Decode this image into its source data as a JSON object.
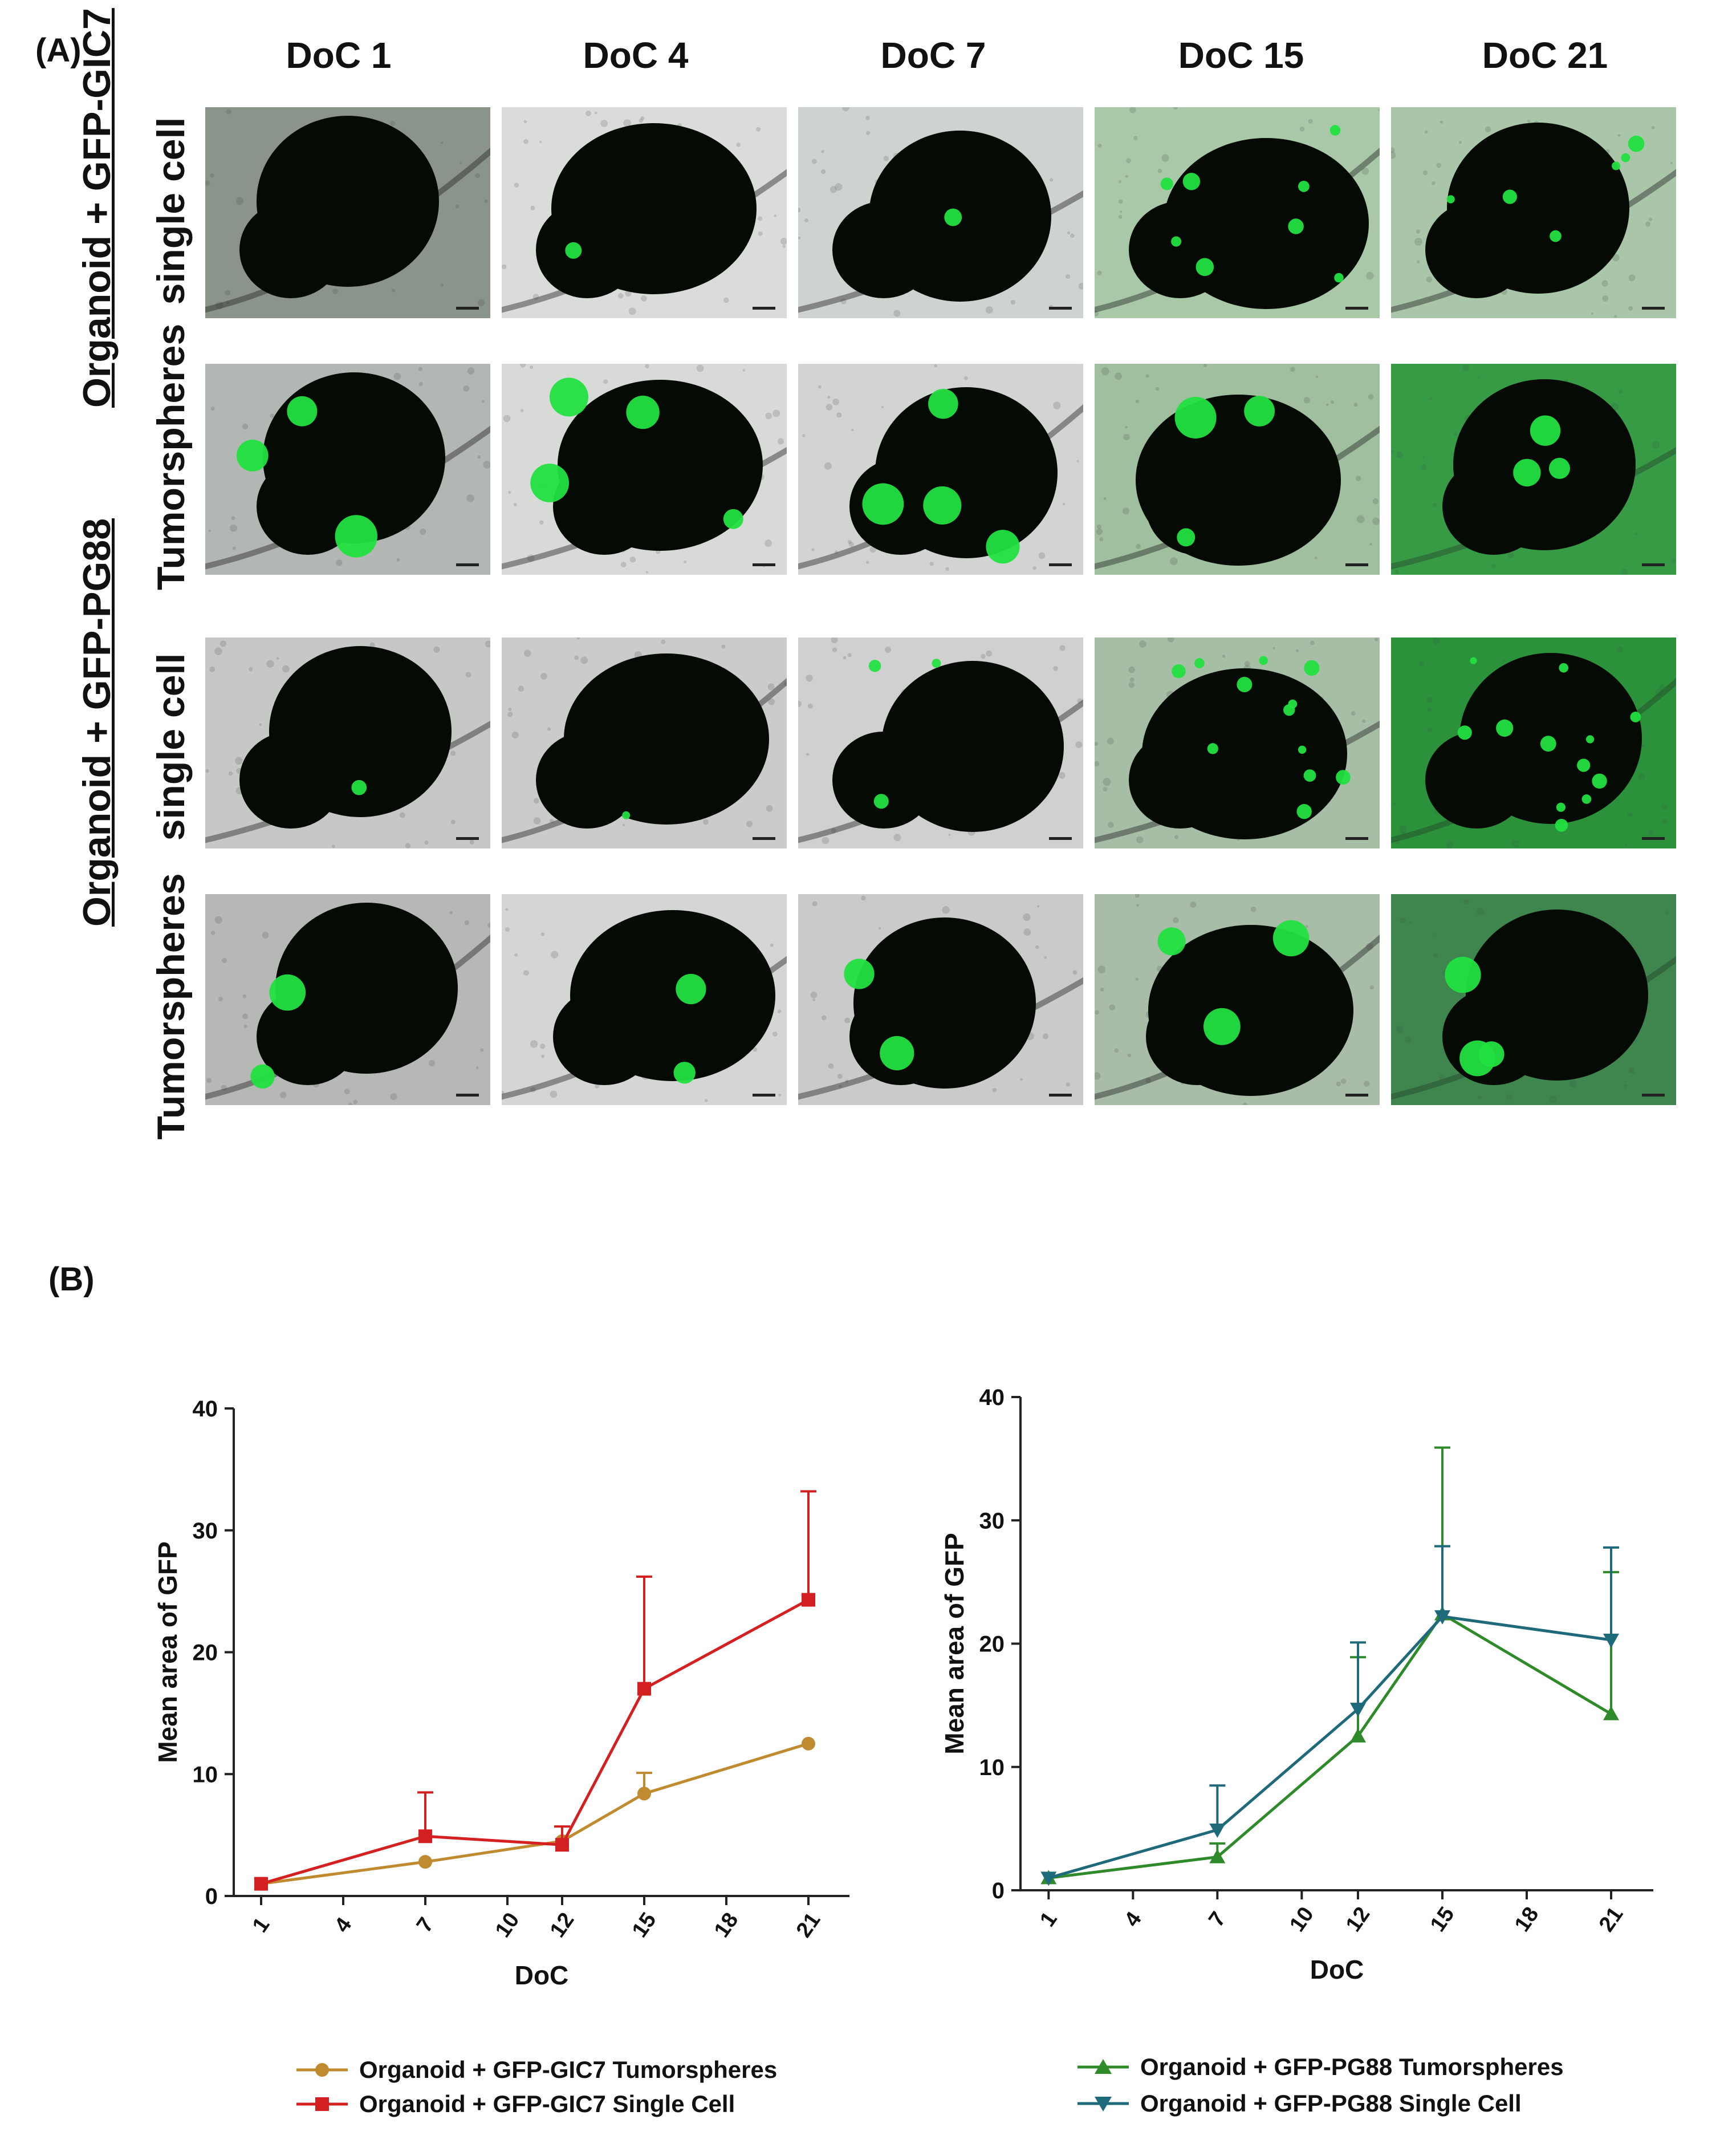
{
  "panel_a": {
    "letter": "(A)",
    "columns": [
      "DoC 1",
      "DoC 4",
      "DoC 7",
      "DoC 15",
      "DoC 21"
    ],
    "groups": [
      {
        "label": "Organoid + GFP-GIC7",
        "rows": [
          "single cell",
          "Tumorspheres"
        ]
      },
      {
        "label": "Organoid + GFP-PG88",
        "rows": [
          "single cell",
          "Tumorspheres"
        ]
      }
    ],
    "colors": {
      "gfp": "#22e040",
      "organoid": "#050a05"
    }
  },
  "panel_b": {
    "letter": "(B)",
    "chart_data": [
      {
        "type": "line",
        "xlabel": "DoC",
        "ylabel": "Mean area of GFP",
        "xticks": [
          1,
          4,
          7,
          10,
          12,
          15,
          18,
          21
        ],
        "yticks": [
          0,
          10,
          20,
          30,
          40
        ],
        "xlim": [
          0,
          22.5
        ],
        "ylim": [
          0,
          40
        ],
        "series": [
          {
            "name": "Organoid + GFP-GIC7 Tumorspheres",
            "color": "#c08a2e",
            "marker": "circle",
            "x": [
              1,
              7,
              12,
              15,
              21
            ],
            "y": [
              1.0,
              2.8,
              4.5,
              8.4,
              12.5
            ],
            "err": [
              0,
              0,
              0,
              1.7,
              0
            ]
          },
          {
            "name": "Organoid + GFP-GIC7 Single Cell",
            "color": "#d42020",
            "marker": "square",
            "x": [
              1,
              7,
              12,
              15,
              21
            ],
            "y": [
              1.0,
              4.9,
              4.2,
              17.0,
              24.3
            ],
            "err": [
              0,
              3.6,
              1.5,
              9.2,
              8.9
            ]
          }
        ]
      },
      {
        "type": "line",
        "xlabel": "DoC",
        "ylabel": "Mean area of GFP",
        "xticks": [
          1,
          4,
          7,
          10,
          12,
          15,
          18,
          21
        ],
        "yticks": [
          0,
          10,
          20,
          30,
          40
        ],
        "xlim": [
          0,
          22.5
        ],
        "ylim": [
          0,
          40
        ],
        "series": [
          {
            "name": "Organoid + GFP-PG88 Tumorspheres",
            "color": "#2f8a2a",
            "marker": "triangle-up",
            "x": [
              1,
              7,
              12,
              15,
              21
            ],
            "y": [
              1.0,
              2.7,
              12.5,
              22.4,
              14.3
            ],
            "err": [
              0,
              1.1,
              6.4,
              13.5,
              11.5
            ]
          },
          {
            "name": "Organoid + GFP-PG88 Single Cell",
            "color": "#1e6a7a",
            "marker": "triangle-down",
            "x": [
              1,
              7,
              12,
              15,
              21
            ],
            "y": [
              1.0,
              4.9,
              14.7,
              22.2,
              20.3
            ],
            "err": [
              0,
              3.6,
              5.4,
              5.7,
              7.5
            ]
          }
        ]
      }
    ]
  }
}
